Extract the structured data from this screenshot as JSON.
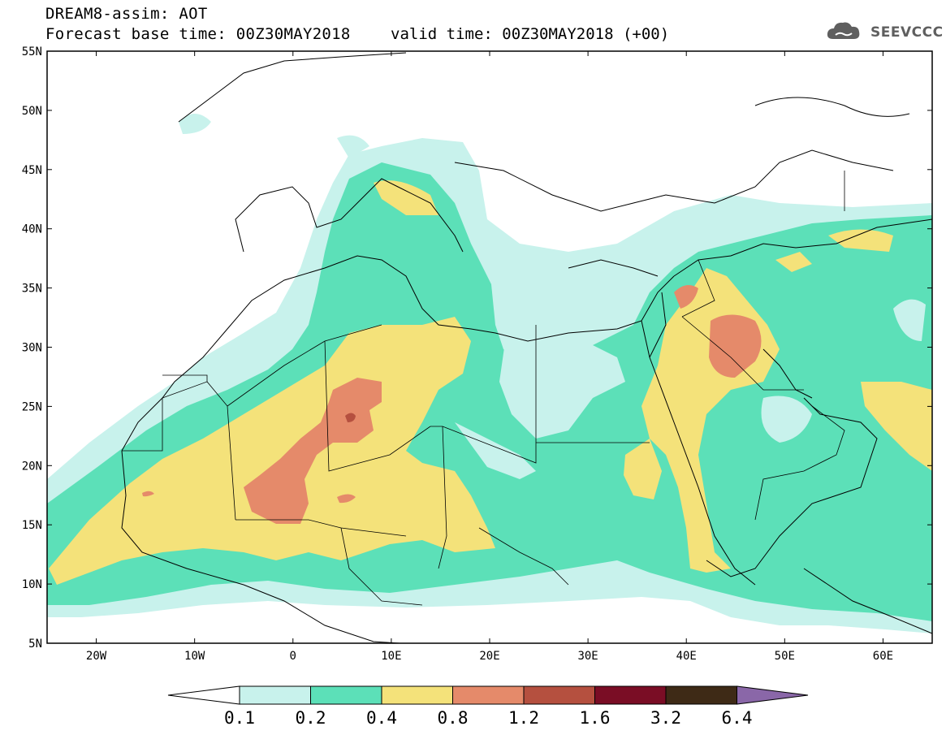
{
  "header": {
    "title": "DREAM8-assim: AOT",
    "base_time": "Forecast base time: 00Z30MAY2018",
    "valid_time": "valid time: 00Z30MAY2018 (+00)",
    "logo_text": "SEEVCCC",
    "logo_icon": "cloud-icon"
  },
  "map": {
    "lat_range": [
      5,
      55
    ],
    "lon_range": [
      -25,
      65
    ],
    "lat_labels": [
      "55N",
      "50N",
      "45N",
      "40N",
      "35N",
      "30N",
      "25N",
      "20N",
      "15N",
      "10N",
      "5N"
    ],
    "lon_labels": [
      "20W",
      "10W",
      "0",
      "10E",
      "20E",
      "30E",
      "40E",
      "50E",
      "60E"
    ]
  },
  "colorbar": {
    "levels": [
      "0.1",
      "0.2",
      "0.4",
      "0.8",
      "1.2",
      "1.6",
      "3.2",
      "6.4"
    ],
    "colors": [
      "#c8f2ec",
      "#5ce0b8",
      "#f4e27a",
      "#e58a6a",
      "#b5503f",
      "#7a0d25",
      "#3e2a16"
    ],
    "under_color": "#ffffff",
    "over_color": "#8a67a8"
  }
}
